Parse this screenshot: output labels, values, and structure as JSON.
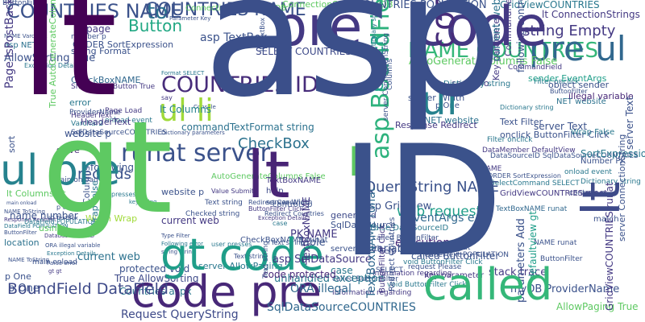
{
  "cloud": {
    "words": [
      {
        "text": "asp",
        "color": "#3b4f8a"
      },
      {
        "text": "lt",
        "color": "#440154"
      },
      {
        "text": "gt",
        "color": "#5ec962"
      },
      {
        "text": "ID",
        "color": "#3b528b"
      },
      {
        "text": "code",
        "color": "#31688e"
      },
      {
        "text": "pre",
        "color": "#2a788e"
      },
      {
        "text": "code pre",
        "color": "#482878"
      },
      {
        "text": "called",
        "color": "#35b779"
      },
      {
        "text": "ul pre",
        "color": "#26828e"
      },
      {
        "text": "ul li",
        "color": "#a0da39"
      },
      {
        "text": "lt",
        "color": "#3e4a89"
      },
      {
        "text": "ul",
        "color": "#1f9e89"
      },
      {
        "text": "code",
        "color": "#443983"
      },
      {
        "text": "to",
        "color": "#2c728e"
      },
      {
        "text": "lt",
        "color": "#482475"
      },
      {
        "text": "gt code",
        "color": "#1f9e89"
      },
      {
        "text": "runat server",
        "color": "#3b528b"
      },
      {
        "text": "COUNTRIES NAME",
        "color": "#3b528b"
      },
      {
        "text": "COUNTRIES ID",
        "color": "#472c7a"
      },
      {
        "text": "NAME COUNTRIES",
        "color": "#35b779"
      },
      {
        "text": "BoundField DataField",
        "color": "#3e4a89"
      },
      {
        "text": "Button",
        "color": "#22a884"
      },
      {
        "text": "CheckBox",
        "color": "#2c728e"
      },
      {
        "text": "records",
        "color": "#3b528b"
      },
      {
        "text": "ORDER",
        "color": "#1f9e89"
      },
      {
        "text": "li",
        "color": "#5ec962"
      },
      {
        "text": "asp BoundField",
        "color": "#2db27d"
      },
      {
        "text": "lt Columns",
        "color": "#26828e"
      },
      {
        "text": "pre ul",
        "color": "#31688e"
      },
      {
        "text": "string Empty",
        "color": "#443983"
      },
      {
        "text": "Request QueryString",
        "color": "#3e4a89"
      },
      {
        "text": "unhandled exception",
        "color": "#2a788e"
      },
      {
        "text": "SqlDataSourceCOUNTRIES",
        "color": "#31688e"
      },
      {
        "text": "code protected",
        "color": "#482878"
      },
      {
        "text": "ConnectionStrings myDB",
        "color": "#5ec962"
      },
      {
        "text": "COUNTRIES POPULATION",
        "color": "#3b528b"
      },
      {
        "text": "GridViewCOUNTRIES",
        "color": "#2a788e"
      },
      {
        "text": "lt ConnectionStrings",
        "color": "#443983"
      },
      {
        "text": "asp TextBox",
        "color": "#3b528b"
      },
      {
        "text": "SELECT COUNTRIES",
        "color": "#3e4a89"
      },
      {
        "text": "commandTextFormat string",
        "color": "#2c728e"
      },
      {
        "text": "asp GridView",
        "color": "#3b528b"
      },
      {
        "text": "web request",
        "color": "#1f9e89"
      },
      {
        "text": "EventArgs e",
        "color": "#31688e"
      },
      {
        "text": "GridView",
        "color": "#35b779"
      },
      {
        "text": "QueryString NAME",
        "color": "#3b528b"
      },
      {
        "text": "asp SqlDataSource",
        "color": "#443983"
      },
      {
        "text": "protected void",
        "color": "#3b528b"
      },
      {
        "text": "Countries aspx",
        "color": "#2a788e"
      },
      {
        "text": "execution",
        "color": "#482878"
      },
      {
        "text": "variable name",
        "color": "#3b528b"
      },
      {
        "text": "ORA illegal",
        "color": "#31688e"
      },
      {
        "text": "stack trace",
        "color": "#443983"
      },
      {
        "text": "myDB ProviderName",
        "color": "#3b528b"
      },
      {
        "text": "AllowPaging True",
        "color": "#5ec962"
      },
      {
        "text": "current web",
        "color": "#2c728e"
      },
      {
        "text": "True AllowSorting",
        "color": "#3e4a89"
      },
      {
        "text": "Width Wrap",
        "color": "#a0da39"
      },
      {
        "text": "name number",
        "color": "#3b528b"
      },
      {
        "text": "lt Columns gt",
        "color": "#5ec962"
      },
      {
        "text": "page",
        "color": "#443983"
      },
      {
        "text": "string Format",
        "color": "#3b528b"
      },
      {
        "text": "CheckBoxNAME",
        "color": "#31688e"
      },
      {
        "text": "ProviderName",
        "color": "#3b528b"
      },
      {
        "text": "HeaderText",
        "color": "#443983"
      },
      {
        "text": "error",
        "color": "#2a788e"
      },
      {
        "text": "sort",
        "color": "#3b528b"
      },
      {
        "text": "solve",
        "color": "#482878"
      },
      {
        "text": "following",
        "color": "#3b528b"
      },
      {
        "text": "PK NAME",
        "color": "#443983"
      },
      {
        "text": "Table",
        "color": "#3b528b"
      },
      {
        "text": "generated",
        "color": "#3e4a89"
      },
      {
        "text": "origin",
        "color": "#3b528b"
      },
      {
        "text": "sender EventArgs",
        "color": "#1f9e89"
      },
      {
        "text": "object sender",
        "color": "#3b528b"
      },
      {
        "text": "illegal variable",
        "color": "#482878"
      },
      {
        "text": "server Text",
        "color": "#3b528b"
      },
      {
        "text": "SortExpression",
        "color": "#2a788e"
      },
      {
        "text": "Number PK",
        "color": "#3b528b"
      },
      {
        "text": "scenario",
        "color": "#443983"
      },
      {
        "text": "website p",
        "color": "#3b528b"
      },
      {
        "text": "location",
        "color": "#2c728e"
      },
      {
        "text": "using",
        "color": "#5ec962"
      },
      {
        "text": "p One",
        "color": "#3b528b"
      },
      {
        "text": "Wrap False",
        "color": "#2a788e"
      },
      {
        "text": "match",
        "color": "#3b528b"
      },
      {
        "text": "help",
        "color": "#3e4a89"
      },
      {
        "text": "SqlDataSource",
        "color": "#3b528b"
      },
      {
        "text": "TextBoxNAME",
        "color": "#443983"
      },
      {
        "text": "controls p",
        "color": "#3b528b"
      },
      {
        "text": "case",
        "color": "#2a788e"
      },
      {
        "text": "server Width",
        "color": "#3b528b"
      },
      {
        "text": "NET website",
        "color": "#2c728e"
      },
      {
        "text": "AutoGenerateColumns False",
        "color": "#5ec962"
      },
      {
        "text": "Checked string",
        "color": "#3b528b"
      },
      {
        "text": "CommandField ShowSelectButton",
        "color": "#2a788e"
      },
      {
        "text": "Redirect Countries",
        "color": "#3b528b"
      },
      {
        "text": "ButtonFilter Click",
        "color": "#443983"
      },
      {
        "text": "parameters Add",
        "color": "#3b528b"
      },
      {
        "text": "defaultview gt",
        "color": "#1f9e89"
      },
      {
        "text": "TextBoxNAME runat",
        "color": "#31688e"
      },
      {
        "text": "CheckBoxNAME runat",
        "color": "#3b528b"
      },
      {
        "text": "server AllowPaging",
        "color": "#2a788e"
      },
      {
        "text": "server ConnectionString",
        "color": "#3b528b"
      },
      {
        "text": "GridViewCOUNTRIES runat",
        "color": "#443983"
      },
      {
        "text": "SqlDataSourceCOUNTRIES",
        "color": "#3b528b"
      },
      {
        "text": "Varchar2",
        "color": "#2a788e"
      },
      {
        "text": "NAME Varchar2",
        "color": "#3b528b"
      },
      {
        "text": "Page IsPostBack",
        "color": "#443983"
      },
      {
        "text": "True AutoGenerateColumns",
        "color": "#5ec962"
      },
      {
        "text": "AllowSorting True",
        "color": "#3b528b"
      },
      {
        "text": "asp NET",
        "color": "#2c728e"
      },
      {
        "text": "number p",
        "color": "#3b528b"
      },
      {
        "text": "ShowSelectButton True",
        "color": "#443983"
      },
      {
        "text": "following controls",
        "color": "#3b528b"
      },
      {
        "text": "DataField POPULATION",
        "color": "#2a788e"
      },
      {
        "text": "NAME ToString",
        "color": "#3b528b"
      },
      {
        "text": "Response Redirect",
        "color": "#443983"
      },
      {
        "text": "main onload",
        "color": "#3b528b"
      },
      {
        "text": "Filter onclick",
        "color": "#2a788e"
      },
      {
        "text": "onclick ButtonFilter Click",
        "color": "#3b528b"
      },
      {
        "text": "DataMember DefaultView",
        "color": "#443983"
      },
      {
        "text": "DataSourceID SqlDataSourceCOUNTRIES",
        "color": "#3b528b"
      },
      {
        "text": "SelectCommand SELECT",
        "color": "#2a788e"
      },
      {
        "text": "ORDER SortExpression",
        "color": "#3b528b"
      },
      {
        "text": "NAME",
        "color": "#443983"
      },
      {
        "text": "Columns",
        "color": "#3b528b"
      },
      {
        "text": "Dictionary string",
        "color": "#2a788e"
      },
      {
        "text": "HeaderText POPULATION",
        "color": "#3b528b"
      },
      {
        "text": "Page Load",
        "color": "#443983"
      },
      {
        "text": "NAME runat",
        "color": "#3b528b"
      },
      {
        "text": "onload event",
        "color": "#2a788e"
      },
      {
        "text": "Text Filter",
        "color": "#3b528b"
      },
      {
        "text": "CommandField",
        "color": "#443983"
      },
      {
        "text": "ButtonFilter",
        "color": "#3b528b"
      },
      {
        "text": "False DataSourceID",
        "color": "#2a788e"
      },
      {
        "text": "SELECT",
        "color": "#3b528b"
      },
      {
        "text": "Key parameter",
        "color": "#443983"
      },
      {
        "text": "request Please",
        "color": "#3b528b"
      },
      {
        "text": "void ButtonFilter Click",
        "color": "#2a788e"
      },
      {
        "text": "called ButtonFilter",
        "color": "#3b528b"
      },
      {
        "text": "Information regarding",
        "color": "#443983"
      },
      {
        "text": "ID TextBox",
        "color": "#3b528b"
      },
      {
        "text": "user presses",
        "color": "#2a788e"
      },
      {
        "text": "Text string",
        "color": "#3b528b"
      },
      {
        "text": "Databaseames ID",
        "color": "#443983"
      },
      {
        "text": "ORA illegal variable",
        "color": "#3b528b"
      },
      {
        "text": "Exception Details",
        "color": "#2a788e"
      },
      {
        "text": "Parse error",
        "color": "#3b528b"
      },
      {
        "text": "gt gt",
        "color": "#443983"
      },
      {
        "text": "p tag",
        "color": "#3b528b"
      },
      {
        "text": "key string",
        "color": "#2a788e"
      },
      {
        "text": "Parameter Key",
        "color": "#3b528b"
      },
      {
        "text": "say",
        "color": "#443983"
      },
      {
        "text": "Console",
        "color": "#3b528b"
      },
      {
        "text": "Format SELECT",
        "color": "#2a788e"
      },
      {
        "text": "Dictionary parameters",
        "color": "#3b528b"
      },
      {
        "text": "Value Submit",
        "color": "#443983"
      },
      {
        "text": "Type Filter",
        "color": "#3b528b"
      },
      {
        "text": "Following error",
        "color": "#2a788e"
      },
      {
        "text": "string string",
        "color": "#3b528b"
      },
      {
        "text": "Exception Details",
        "color": "#443983"
      }
    ]
  }
}
